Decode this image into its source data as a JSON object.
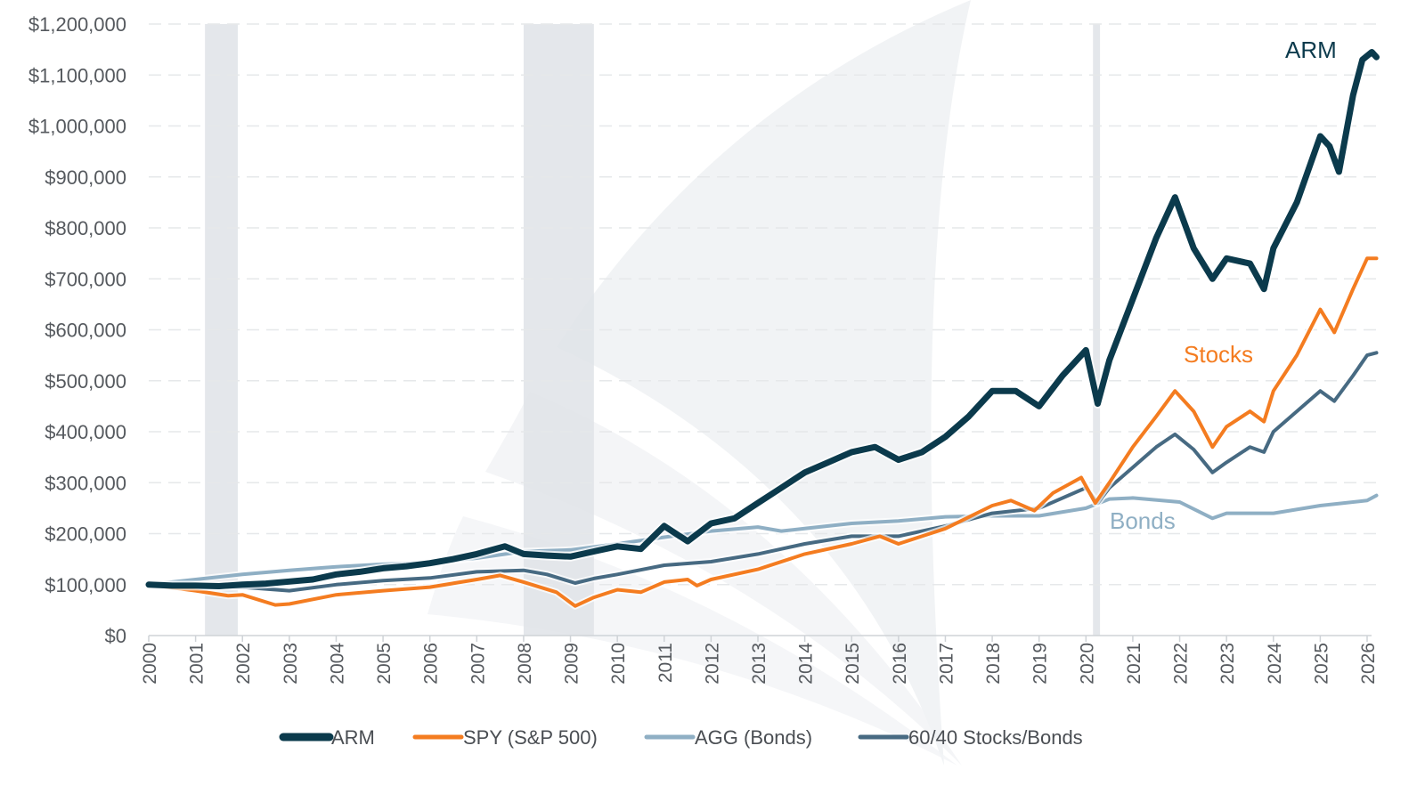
{
  "chart_data": {
    "type": "line",
    "title": "",
    "xlabel": "",
    "ylabel": "",
    "xlim": [
      2000,
      2026.2
    ],
    "ylim": [
      0,
      1200000
    ],
    "grid": "horizontal dashed",
    "y_ticks": [
      {
        "value": 0,
        "label": "$0"
      },
      {
        "value": 100000,
        "label": "$100,000"
      },
      {
        "value": 200000,
        "label": "$200,000"
      },
      {
        "value": 300000,
        "label": "$300,000"
      },
      {
        "value": 400000,
        "label": "$400,000"
      },
      {
        "value": 500000,
        "label": "$500,000"
      },
      {
        "value": 600000,
        "label": "$600,000"
      },
      {
        "value": 700000,
        "label": "$700,000"
      },
      {
        "value": 800000,
        "label": "$800,000"
      },
      {
        "value": 900000,
        "label": "$900,000"
      },
      {
        "value": 1000000,
        "label": "$1,000,000"
      },
      {
        "value": 1100000,
        "label": "$1,100,000"
      },
      {
        "value": 1200000,
        "label": "$1,200,000"
      }
    ],
    "x_ticks": [
      "2000",
      "2001",
      "2002",
      "2003",
      "2004",
      "2005",
      "2006",
      "2007",
      "2008",
      "2009",
      "2010",
      "2011",
      "2012",
      "2013",
      "2014",
      "2015",
      "2016",
      "2017",
      "2018",
      "2019",
      "2020",
      "2021",
      "2022",
      "2023",
      "2024",
      "2025",
      "2026"
    ],
    "shaded_periods": [
      [
        2001.2,
        2001.9
      ],
      [
        2008.0,
        2009.5
      ],
      [
        2020.15,
        2020.3
      ]
    ],
    "legend_position": "bottom",
    "series": [
      {
        "name": "ARM",
        "color": "#0b3a4c",
        "width": 7,
        "annotation": "ARM",
        "points": [
          [
            2000,
            100000
          ],
          [
            2000.5,
            98000
          ],
          [
            2001,
            98000
          ],
          [
            2001.5,
            97000
          ],
          [
            2002,
            100000
          ],
          [
            2002.5,
            102000
          ],
          [
            2003,
            106000
          ],
          [
            2003.5,
            110000
          ],
          [
            2004,
            120000
          ],
          [
            2004.5,
            125000
          ],
          [
            2005,
            132000
          ],
          [
            2005.5,
            136000
          ],
          [
            2006,
            142000
          ],
          [
            2006.5,
            150000
          ],
          [
            2007,
            160000
          ],
          [
            2007.6,
            175000
          ],
          [
            2008,
            160000
          ],
          [
            2008.5,
            157000
          ],
          [
            2009,
            155000
          ],
          [
            2009.5,
            165000
          ],
          [
            2010,
            175000
          ],
          [
            2010.5,
            170000
          ],
          [
            2011,
            215000
          ],
          [
            2011.5,
            185000
          ],
          [
            2012,
            220000
          ],
          [
            2012.5,
            230000
          ],
          [
            2013,
            260000
          ],
          [
            2013.5,
            290000
          ],
          [
            2014,
            320000
          ],
          [
            2014.5,
            340000
          ],
          [
            2015,
            360000
          ],
          [
            2015.5,
            370000
          ],
          [
            2016,
            345000
          ],
          [
            2016.5,
            360000
          ],
          [
            2017,
            390000
          ],
          [
            2017.5,
            430000
          ],
          [
            2018,
            480000
          ],
          [
            2018.5,
            480000
          ],
          [
            2019,
            450000
          ],
          [
            2019.5,
            510000
          ],
          [
            2020,
            560000
          ],
          [
            2020.25,
            455000
          ],
          [
            2020.5,
            540000
          ],
          [
            2021,
            660000
          ],
          [
            2021.5,
            780000
          ],
          [
            2021.9,
            860000
          ],
          [
            2022.3,
            760000
          ],
          [
            2022.7,
            700000
          ],
          [
            2023,
            740000
          ],
          [
            2023.5,
            730000
          ],
          [
            2023.8,
            680000
          ],
          [
            2024,
            760000
          ],
          [
            2024.5,
            850000
          ],
          [
            2025,
            980000
          ],
          [
            2025.2,
            960000
          ],
          [
            2025.4,
            910000
          ],
          [
            2025.7,
            1060000
          ],
          [
            2025.9,
            1130000
          ],
          [
            2026.1,
            1145000
          ],
          [
            2026.2,
            1135000
          ]
        ]
      },
      {
        "name": "SPY (S&P 500)",
        "color": "#f47c20",
        "width": 4,
        "annotation": "Stocks",
        "points": [
          [
            2000,
            100000
          ],
          [
            2001,
            88000
          ],
          [
            2001.7,
            78000
          ],
          [
            2002,
            80000
          ],
          [
            2002.7,
            60000
          ],
          [
            2003,
            62000
          ],
          [
            2004,
            80000
          ],
          [
            2005,
            88000
          ],
          [
            2006,
            95000
          ],
          [
            2007,
            110000
          ],
          [
            2007.5,
            118000
          ],
          [
            2008,
            105000
          ],
          [
            2008.7,
            85000
          ],
          [
            2009.1,
            58000
          ],
          [
            2009.5,
            75000
          ],
          [
            2010,
            90000
          ],
          [
            2010.5,
            85000
          ],
          [
            2011,
            105000
          ],
          [
            2011.5,
            110000
          ],
          [
            2011.7,
            98000
          ],
          [
            2012,
            110000
          ],
          [
            2013,
            130000
          ],
          [
            2014,
            160000
          ],
          [
            2015,
            180000
          ],
          [
            2015.6,
            195000
          ],
          [
            2016,
            180000
          ],
          [
            2016.5,
            195000
          ],
          [
            2017,
            210000
          ],
          [
            2018,
            255000
          ],
          [
            2018.4,
            265000
          ],
          [
            2018.9,
            245000
          ],
          [
            2019.3,
            280000
          ],
          [
            2019.9,
            310000
          ],
          [
            2020.2,
            260000
          ],
          [
            2020.5,
            300000
          ],
          [
            2021,
            370000
          ],
          [
            2021.5,
            430000
          ],
          [
            2021.9,
            480000
          ],
          [
            2022.3,
            440000
          ],
          [
            2022.7,
            370000
          ],
          [
            2023,
            410000
          ],
          [
            2023.5,
            440000
          ],
          [
            2023.8,
            420000
          ],
          [
            2024,
            480000
          ],
          [
            2024.5,
            550000
          ],
          [
            2025,
            640000
          ],
          [
            2025.3,
            595000
          ],
          [
            2025.7,
            680000
          ],
          [
            2026,
            740000
          ],
          [
            2026.2,
            740000
          ]
        ]
      },
      {
        "name": "AGG (Bonds)",
        "color": "#8fafc4",
        "width": 4,
        "annotation": "Bonds",
        "points": [
          [
            2000,
            100000
          ],
          [
            2001,
            110000
          ],
          [
            2002,
            120000
          ],
          [
            2003,
            128000
          ],
          [
            2004,
            135000
          ],
          [
            2005,
            140000
          ],
          [
            2006,
            143000
          ],
          [
            2007,
            152000
          ],
          [
            2008,
            165000
          ],
          [
            2009,
            168000
          ],
          [
            2010,
            180000
          ],
          [
            2011,
            193000
          ],
          [
            2012,
            205000
          ],
          [
            2013,
            213000
          ],
          [
            2013.5,
            205000
          ],
          [
            2014,
            210000
          ],
          [
            2015,
            220000
          ],
          [
            2016,
            225000
          ],
          [
            2017,
            233000
          ],
          [
            2018,
            235000
          ],
          [
            2019,
            235000
          ],
          [
            2020,
            250000
          ],
          [
            2020.5,
            268000
          ],
          [
            2021,
            270000
          ],
          [
            2022,
            262000
          ],
          [
            2022.7,
            230000
          ],
          [
            2023,
            240000
          ],
          [
            2024,
            240000
          ],
          [
            2025,
            255000
          ],
          [
            2026,
            265000
          ],
          [
            2026.2,
            275000
          ]
        ]
      },
      {
        "name": "60/40 Stocks/Bonds",
        "color": "#476a82",
        "width": 4,
        "annotation": "",
        "points": [
          [
            2000,
            100000
          ],
          [
            2001,
            98000
          ],
          [
            2002,
            95000
          ],
          [
            2003,
            88000
          ],
          [
            2004,
            100000
          ],
          [
            2005,
            108000
          ],
          [
            2006,
            113000
          ],
          [
            2007,
            125000
          ],
          [
            2008,
            128000
          ],
          [
            2008.5,
            120000
          ],
          [
            2009.1,
            103000
          ],
          [
            2009.5,
            112000
          ],
          [
            2010,
            120000
          ],
          [
            2011,
            138000
          ],
          [
            2012,
            145000
          ],
          [
            2013,
            160000
          ],
          [
            2014,
            180000
          ],
          [
            2015,
            195000
          ],
          [
            2016,
            195000
          ],
          [
            2017,
            215000
          ],
          [
            2018,
            240000
          ],
          [
            2019,
            250000
          ],
          [
            2020,
            290000
          ],
          [
            2020.25,
            260000
          ],
          [
            2020.5,
            290000
          ],
          [
            2021,
            330000
          ],
          [
            2021.5,
            370000
          ],
          [
            2021.9,
            395000
          ],
          [
            2022.3,
            365000
          ],
          [
            2022.7,
            320000
          ],
          [
            2023,
            340000
          ],
          [
            2023.5,
            370000
          ],
          [
            2023.8,
            360000
          ],
          [
            2024,
            400000
          ],
          [
            2024.5,
            440000
          ],
          [
            2025,
            480000
          ],
          [
            2025.3,
            460000
          ],
          [
            2025.7,
            510000
          ],
          [
            2026,
            550000
          ],
          [
            2026.2,
            555000
          ]
        ]
      }
    ]
  }
}
